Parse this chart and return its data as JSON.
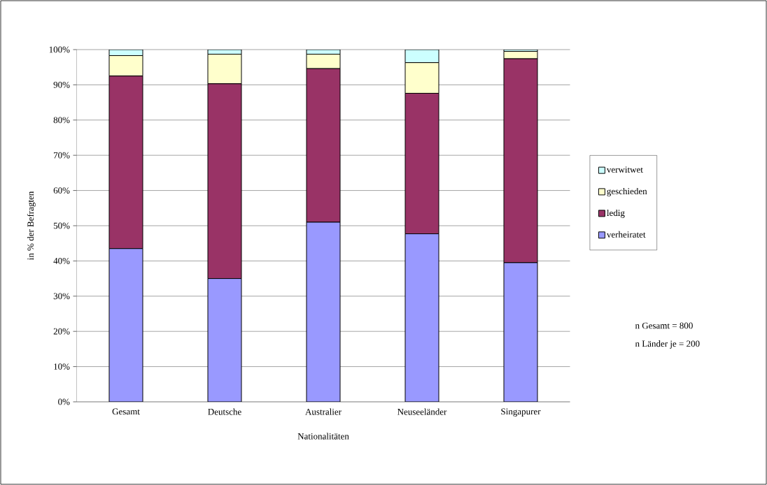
{
  "chart_data": {
    "type": "bar",
    "stacked": true,
    "xlabel": "Nationalitäten",
    "ylabel": "in % der Befragten",
    "categories": [
      "Gesamt",
      "Deutsche",
      "Australier",
      "Neuseeländer",
      "Singapurer"
    ],
    "series": [
      {
        "name": "verheiratet",
        "color": "#9999ff",
        "values": [
          43.5,
          35.0,
          51.0,
          47.7,
          39.5
        ]
      },
      {
        "name": "ledig",
        "color": "#993366",
        "values": [
          49.0,
          55.3,
          43.6,
          39.9,
          57.9
        ]
      },
      {
        "name": "geschieden",
        "color": "#ffffcc",
        "values": [
          5.8,
          8.4,
          4.1,
          8.7,
          2.1
        ]
      },
      {
        "name": "verwitwet",
        "color": "#ccffff",
        "values": [
          1.7,
          1.3,
          1.3,
          3.7,
          0.5
        ]
      }
    ],
    "ylim": [
      0,
      100
    ],
    "yticks": [
      {
        "value": 0,
        "label": "0%"
      },
      {
        "value": 10,
        "label": "10%"
      },
      {
        "value": 20,
        "label": "20%"
      },
      {
        "value": 30,
        "label": "30%"
      },
      {
        "value": 40,
        "label": "40%"
      },
      {
        "value": 50,
        "label": "50%"
      },
      {
        "value": 60,
        "label": "60%"
      },
      {
        "value": 70,
        "label": "70%"
      },
      {
        "value": 80,
        "label": "80%"
      },
      {
        "value": 90,
        "label": "90%"
      },
      {
        "value": 100,
        "label": "100%"
      }
    ],
    "grid": "y",
    "legend": "right",
    "annotations": [
      "n Gesamt = 800",
      "n Länder je = 200"
    ]
  }
}
